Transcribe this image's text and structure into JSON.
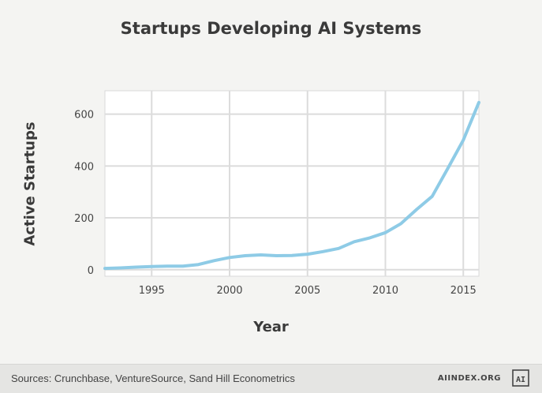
{
  "chart_data": {
    "type": "line",
    "title": "Startups Developing AI Systems",
    "xlabel": "Year",
    "ylabel": "Active Startups",
    "xlim": [
      1992,
      2016
    ],
    "ylim": [
      -25,
      690
    ],
    "xticks": [
      1995,
      2000,
      2005,
      2010,
      2015
    ],
    "yticks": [
      0,
      200,
      400,
      600
    ],
    "grid": true,
    "line_color": "#8ecbe6",
    "series": [
      {
        "x": [
          1992,
          1993,
          1994,
          1995,
          1996,
          1997,
          1998,
          1999,
          2000,
          2001,
          2002,
          2003,
          2004,
          2005,
          2006,
          2007,
          2008,
          2009,
          2010,
          2011,
          2012,
          2013,
          2014,
          2015,
          2016
        ],
        "values": [
          5,
          7,
          10,
          12,
          14,
          14,
          20,
          35,
          47,
          54,
          57,
          54,
          55,
          60,
          70,
          82,
          108,
          123,
          143,
          178,
          232,
          283,
          390,
          500,
          645
        ]
      }
    ]
  },
  "footer": {
    "source": "Sources: Crunchbase, VentureSource, Sand Hill Econometrics",
    "site": "AIINDEX.ORG",
    "logo_text": "AI"
  }
}
